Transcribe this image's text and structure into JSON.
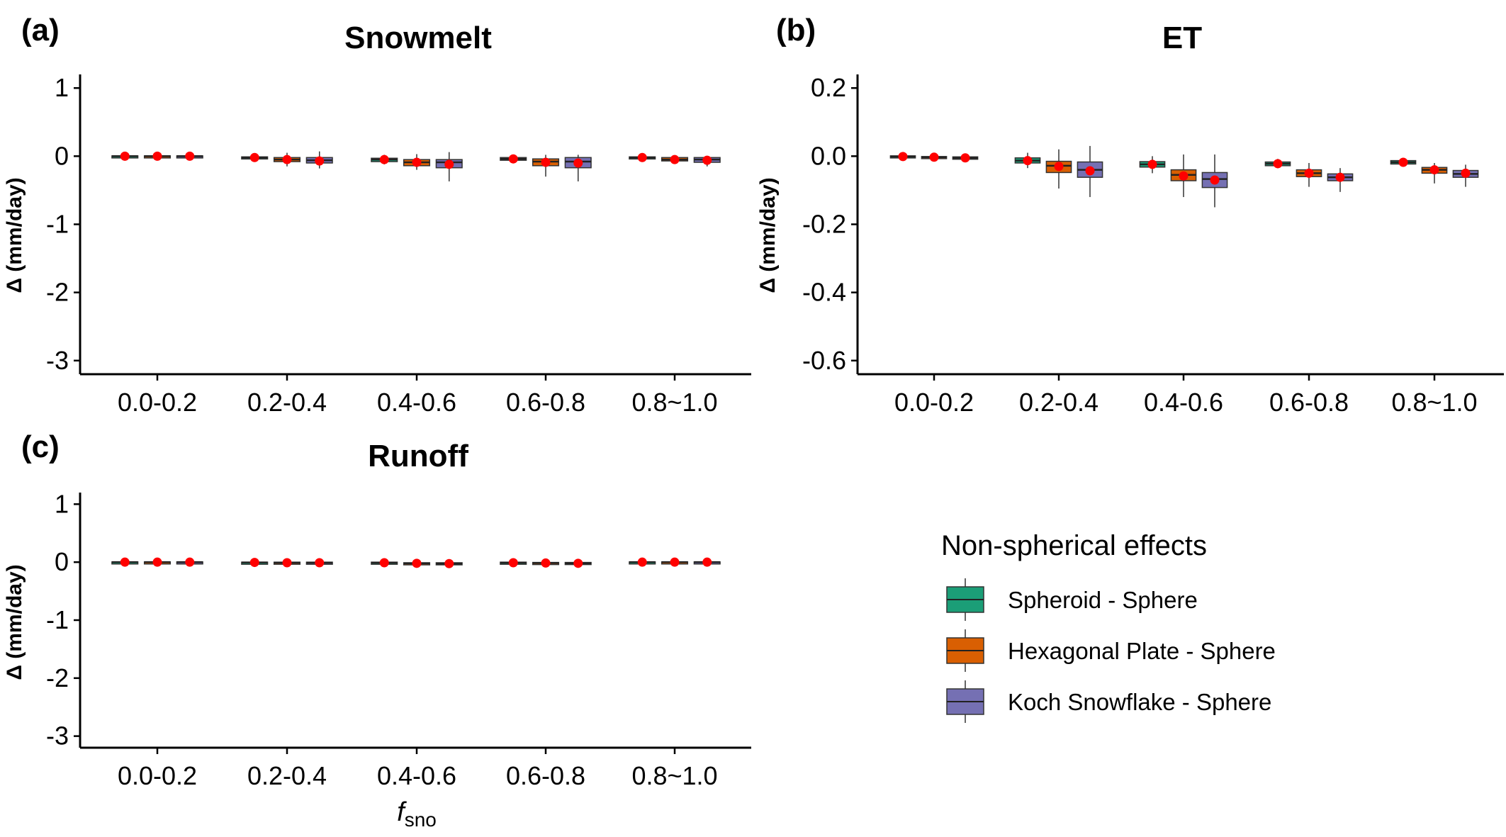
{
  "figure": {
    "colors": {
      "Spheroid - Sphere": "#1b9e77",
      "Hexagonal Plate - Sphere": "#d95f02",
      "Koch Snowflake - Sphere": "#7570b3",
      "mean_point": "#ff0000",
      "axis": "#000000"
    },
    "legend": {
      "title": "Non-spherical effects",
      "entries": [
        "Spheroid - Sphere",
        "Hexagonal Plate - Sphere",
        "Koch Snowflake - Sphere"
      ]
    },
    "xlabel_main": "f",
    "xlabel_sub": "sno"
  },
  "chart_data": [
    {
      "panel": "(a)",
      "title": "Snowmelt",
      "type": "box",
      "ylabel": "Δ (mm/day)",
      "ylim": [
        -3.2,
        1.2
      ],
      "yticks": [
        "1",
        "0",
        "-1",
        "-2",
        "-3"
      ],
      "ytick_values": [
        1,
        0,
        -1,
        -2,
        -3
      ],
      "categories": [
        "0.0-0.2",
        "0.2-0.4",
        "0.4-0.6",
        "0.6-0.8",
        "0.8~1.0"
      ],
      "series": [
        {
          "name": "Spheroid - Sphere",
          "boxes": [
            {
              "min": -0.01,
              "q1": -0.005,
              "median": 0.0,
              "q3": 0.005,
              "max": 0.01,
              "mean": 0.0
            },
            {
              "min": -0.05,
              "q1": -0.03,
              "median": -0.02,
              "q3": -0.01,
              "max": 0.0,
              "mean": -0.02
            },
            {
              "min": -0.12,
              "q1": -0.08,
              "median": -0.05,
              "q3": -0.03,
              "max": 0.02,
              "mean": -0.05
            },
            {
              "min": -0.08,
              "q1": -0.06,
              "median": -0.04,
              "q3": -0.02,
              "max": 0.0,
              "mean": -0.04
            },
            {
              "min": -0.04,
              "q1": -0.03,
              "median": -0.02,
              "q3": -0.01,
              "max": 0.0,
              "mean": -0.02
            }
          ]
        },
        {
          "name": "Hexagonal Plate - Sphere",
          "boxes": [
            {
              "min": -0.01,
              "q1": -0.005,
              "median": 0.0,
              "q3": 0.005,
              "max": 0.01,
              "mean": 0.0
            },
            {
              "min": -0.15,
              "q1": -0.08,
              "median": -0.05,
              "q3": -0.02,
              "max": 0.05,
              "mean": -0.05
            },
            {
              "min": -0.2,
              "q1": -0.14,
              "median": -0.09,
              "q3": -0.05,
              "max": 0.03,
              "mean": -0.09
            },
            {
              "min": -0.3,
              "q1": -0.14,
              "median": -0.08,
              "q3": -0.04,
              "max": 0.02,
              "mean": -0.09
            },
            {
              "min": -0.11,
              "q1": -0.07,
              "median": -0.05,
              "q3": -0.02,
              "max": 0.0,
              "mean": -0.05
            }
          ]
        },
        {
          "name": "Koch Snowflake - Sphere",
          "boxes": [
            {
              "min": -0.01,
              "q1": -0.005,
              "median": 0.0,
              "q3": 0.005,
              "max": 0.01,
              "mean": 0.0
            },
            {
              "min": -0.18,
              "q1": -0.1,
              "median": -0.06,
              "q3": -0.02,
              "max": 0.07,
              "mean": -0.07
            },
            {
              "min": -0.37,
              "q1": -0.17,
              "median": -0.09,
              "q3": -0.05,
              "max": 0.06,
              "mean": -0.12
            },
            {
              "min": -0.37,
              "q1": -0.17,
              "median": -0.08,
              "q3": -0.02,
              "max": 0.02,
              "mean": -0.1
            },
            {
              "min": -0.15,
              "q1": -0.09,
              "median": -0.05,
              "q3": -0.02,
              "max": 0.0,
              "mean": -0.06
            }
          ]
        }
      ]
    },
    {
      "panel": "(b)",
      "title": "ET",
      "type": "box",
      "ylabel": "Δ (mm/day)",
      "ylim": [
        -0.64,
        0.24
      ],
      "yticks": [
        "0.2",
        "0.0",
        "-0.2",
        "-0.4",
        "-0.6"
      ],
      "ytick_values": [
        0.2,
        0.0,
        -0.2,
        -0.4,
        -0.6
      ],
      "categories": [
        "0.0-0.2",
        "0.2-0.4",
        "0.4-0.6",
        "0.6-0.8",
        "0.8~1.0"
      ],
      "series": [
        {
          "name": "Spheroid - Sphere",
          "boxes": [
            {
              "min": -0.006,
              "q1": -0.003,
              "median": -0.001,
              "q3": 0.001,
              "max": 0.004,
              "mean": -0.001
            },
            {
              "min": -0.035,
              "q1": -0.02,
              "median": -0.013,
              "q3": -0.005,
              "max": 0.01,
              "mean": -0.013
            },
            {
              "min": -0.05,
              "q1": -0.032,
              "median": -0.024,
              "q3": -0.016,
              "max": 0.0,
              "mean": -0.024
            },
            {
              "min": -0.035,
              "q1": -0.028,
              "median": -0.022,
              "q3": -0.017,
              "max": -0.008,
              "mean": -0.022
            },
            {
              "min": -0.03,
              "q1": -0.023,
              "median": -0.018,
              "q3": -0.013,
              "max": -0.006,
              "mean": -0.018
            }
          ]
        },
        {
          "name": "Hexagonal Plate - Sphere",
          "boxes": [
            {
              "min": -0.01,
              "q1": -0.006,
              "median": -0.003,
              "q3": -0.001,
              "max": 0.003,
              "mean": -0.003
            },
            {
              "min": -0.095,
              "q1": -0.048,
              "median": -0.028,
              "q3": -0.015,
              "max": 0.02,
              "mean": -0.03
            },
            {
              "min": -0.12,
              "q1": -0.072,
              "median": -0.055,
              "q3": -0.04,
              "max": 0.005,
              "mean": -0.058
            },
            {
              "min": -0.09,
              "q1": -0.06,
              "median": -0.05,
              "q3": -0.04,
              "max": -0.02,
              "mean": -0.05
            },
            {
              "min": -0.08,
              "q1": -0.05,
              "median": -0.04,
              "q3": -0.033,
              "max": -0.02,
              "mean": -0.04
            }
          ]
        },
        {
          "name": "Koch Snowflake - Sphere",
          "boxes": [
            {
              "min": -0.012,
              "q1": -0.009,
              "median": -0.005,
              "q3": -0.002,
              "max": 0.002,
              "mean": -0.005
            },
            {
              "min": -0.12,
              "q1": -0.062,
              "median": -0.04,
              "q3": -0.017,
              "max": 0.03,
              "mean": -0.043
            },
            {
              "min": -0.15,
              "q1": -0.092,
              "median": -0.067,
              "q3": -0.048,
              "max": 0.005,
              "mean": -0.07
            },
            {
              "min": -0.105,
              "q1": -0.072,
              "median": -0.062,
              "q3": -0.052,
              "max": -0.035,
              "mean": -0.062
            },
            {
              "min": -0.09,
              "q1": -0.062,
              "median": -0.052,
              "q3": -0.042,
              "max": -0.025,
              "mean": -0.05
            }
          ]
        }
      ]
    },
    {
      "panel": "(c)",
      "title": "Runoff",
      "type": "box",
      "ylabel": "Δ (mm/day)",
      "ylim": [
        -3.2,
        1.2
      ],
      "yticks": [
        "1",
        "0",
        "-1",
        "-2",
        "-3"
      ],
      "ytick_values": [
        1,
        0,
        -1,
        -2,
        -3
      ],
      "categories": [
        "0.0-0.2",
        "0.2-0.4",
        "0.4-0.6",
        "0.6-0.8",
        "0.8~1.0"
      ],
      "series": [
        {
          "name": "Spheroid - Sphere",
          "boxes": [
            {
              "min": -0.01,
              "q1": -0.005,
              "median": 0.0,
              "q3": 0.005,
              "max": 0.01,
              "mean": 0.0
            },
            {
              "min": -0.02,
              "q1": -0.01,
              "median": -0.005,
              "q3": 0.0,
              "max": 0.01,
              "mean": -0.005
            },
            {
              "min": -0.03,
              "q1": -0.015,
              "median": -0.01,
              "q3": 0.0,
              "max": 0.01,
              "mean": -0.01
            },
            {
              "min": -0.03,
              "q1": -0.015,
              "median": -0.01,
              "q3": 0.0,
              "max": 0.01,
              "mean": -0.01
            },
            {
              "min": -0.01,
              "q1": -0.005,
              "median": 0.0,
              "q3": 0.005,
              "max": 0.01,
              "mean": 0.0
            }
          ]
        },
        {
          "name": "Hexagonal Plate - Sphere",
          "boxes": [
            {
              "min": -0.01,
              "q1": -0.005,
              "median": 0.0,
              "q3": 0.005,
              "max": 0.01,
              "mean": 0.0
            },
            {
              "min": -0.03,
              "q1": -0.02,
              "median": -0.01,
              "q3": 0.0,
              "max": 0.01,
              "mean": -0.01
            },
            {
              "min": -0.05,
              "q1": -0.03,
              "median": -0.02,
              "q3": -0.01,
              "max": 0.01,
              "mean": -0.02
            },
            {
              "min": -0.04,
              "q1": -0.025,
              "median": -0.015,
              "q3": -0.005,
              "max": 0.01,
              "mean": -0.015
            },
            {
              "min": -0.01,
              "q1": -0.005,
              "median": 0.0,
              "q3": 0.005,
              "max": 0.01,
              "mean": 0.0
            }
          ]
        },
        {
          "name": "Koch Snowflake - Sphere",
          "boxes": [
            {
              "min": -0.01,
              "q1": -0.005,
              "median": 0.0,
              "q3": 0.005,
              "max": 0.01,
              "mean": 0.0
            },
            {
              "min": -0.03,
              "q1": -0.02,
              "median": -0.01,
              "q3": 0.0,
              "max": 0.01,
              "mean": -0.01
            },
            {
              "min": -0.06,
              "q1": -0.035,
              "median": -0.025,
              "q3": -0.01,
              "max": 0.01,
              "mean": -0.025
            },
            {
              "min": -0.05,
              "q1": -0.03,
              "median": -0.02,
              "q3": -0.005,
              "max": 0.01,
              "mean": -0.02
            },
            {
              "min": -0.01,
              "q1": -0.005,
              "median": 0.0,
              "q3": 0.005,
              "max": 0.01,
              "mean": 0.0
            }
          ]
        }
      ]
    }
  ]
}
